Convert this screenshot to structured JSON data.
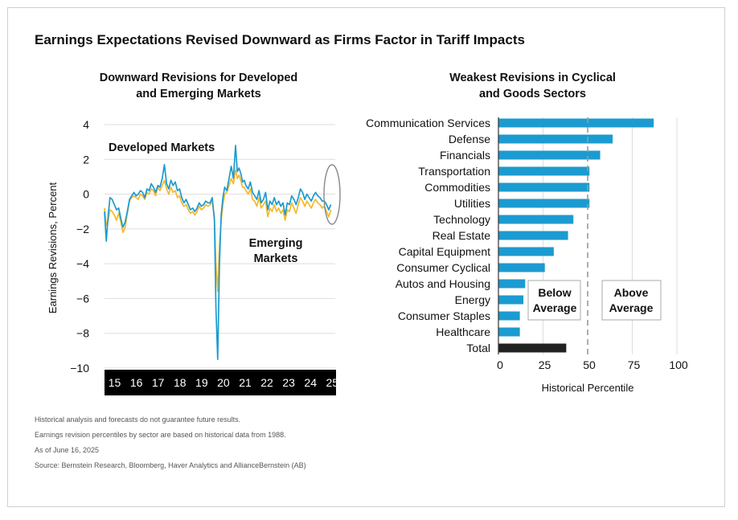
{
  "main_title": "Earnings Expectations Revised Downward as Firms Factor in Tariff Impacts",
  "left_title_line1": "Downward Revisions for Developed",
  "left_title_line2": "and Emerging Markets",
  "right_title_line1": "Weakest Revisions in Cyclical",
  "right_title_line2": "and Goods Sectors",
  "notes": [
    "Historical analysis and forecasts do not guarantee future results.",
    "Earnings revision percentiles by sector are based on historical data from 1988.",
    "As of June 16, 2025",
    "Source: Bernstein Research, Bloomberg, Haver Analytics and AllianceBernstein (AB)"
  ],
  "colors": {
    "developed": "#1b9bd0",
    "emerging": "#f5b82e",
    "bar": "#1b9bd0",
    "total": "#222222",
    "grid": "#dddddd"
  },
  "chart_data": [
    {
      "type": "line",
      "ylabel": "Earnings Revisions, Percent",
      "ylim": [
        -10,
        4
      ],
      "yticks": [
        "4",
        "2",
        "0",
        "−2",
        "−4",
        "−6",
        "−8",
        "−10"
      ],
      "xlim": [
        2015,
        2025.6
      ],
      "xticks": [
        "15",
        "16",
        "17",
        "18",
        "19",
        "20",
        "21",
        "22",
        "23",
        "24",
        "25"
      ],
      "annotations": {
        "developed": "Developed Markets",
        "emerging_line1": "Emerging",
        "emerging_line2": "Markets"
      },
      "series": [
        {
          "name": "Developed Markets",
          "x": [
            2015.0,
            2015.08,
            2015.17,
            2015.25,
            2015.35,
            2015.45,
            2015.55,
            2015.65,
            2015.75,
            2015.85,
            2015.95,
            2016.05,
            2016.15,
            2016.25,
            2016.35,
            2016.45,
            2016.55,
            2016.65,
            2016.75,
            2016.85,
            2016.95,
            2017.05,
            2017.15,
            2017.25,
            2017.35,
            2017.45,
            2017.55,
            2017.65,
            2017.75,
            2017.85,
            2017.95,
            2018.05,
            2018.15,
            2018.25,
            2018.35,
            2018.45,
            2018.55,
            2018.65,
            2018.75,
            2018.85,
            2018.95,
            2019.05,
            2019.15,
            2019.25,
            2019.35,
            2019.45,
            2019.55,
            2019.65,
            2019.75,
            2019.85,
            2019.95,
            2020.05,
            2020.12,
            2020.2,
            2020.28,
            2020.36,
            2020.44,
            2020.52,
            2020.62,
            2020.72,
            2020.82,
            2020.92,
            2021.02,
            2021.1,
            2021.18,
            2021.26,
            2021.34,
            2021.42,
            2021.5,
            2021.6,
            2021.7,
            2021.8,
            2021.9,
            2022.0,
            2022.1,
            2022.2,
            2022.3,
            2022.4,
            2022.5,
            2022.6,
            2022.7,
            2022.8,
            2022.9,
            2023.0,
            2023.1,
            2023.2,
            2023.3,
            2023.4,
            2023.5,
            2023.6,
            2023.7,
            2023.8,
            2023.9,
            2024.0,
            2024.1,
            2024.2,
            2024.3,
            2024.4,
            2024.5,
            2024.6,
            2024.7,
            2024.8,
            2024.9,
            2025.0,
            2025.1,
            2025.2,
            2025.3,
            2025.4
          ],
          "y": [
            -1.0,
            -2.7,
            -1.2,
            -0.2,
            -0.3,
            -0.6,
            -0.9,
            -0.8,
            -1.4,
            -1.9,
            -1.6,
            -1.0,
            -0.3,
            -0.1,
            0.1,
            -0.1,
            0.0,
            0.2,
            0.1,
            -0.2,
            0.3,
            0.2,
            0.6,
            0.4,
            0.1,
            0.5,
            0.4,
            0.9,
            1.7,
            0.6,
            0.3,
            0.8,
            0.5,
            0.7,
            0.2,
            0.3,
            -0.2,
            -0.5,
            -0.3,
            -0.6,
            -0.9,
            -0.8,
            -1.0,
            -0.8,
            -0.5,
            -0.7,
            -0.6,
            -0.4,
            -0.5,
            -0.5,
            -0.2,
            -1.5,
            -6.5,
            -9.5,
            -4.0,
            -1.2,
            -0.2,
            0.4,
            0.2,
            0.9,
            1.6,
            0.9,
            2.8,
            1.3,
            1.5,
            1.2,
            0.7,
            0.8,
            0.5,
            0.3,
            0.7,
            0.1,
            -0.1,
            -0.3,
            0.2,
            -0.5,
            -0.3,
            0.1,
            -0.9,
            -0.4,
            -0.6,
            -0.2,
            -0.6,
            -0.4,
            -0.7,
            -0.5,
            -1.2,
            -0.5,
            -0.6,
            -0.1,
            -0.3,
            -0.6,
            -0.2,
            0.3,
            0.1,
            -0.3,
            0.0,
            -0.2,
            -0.4,
            -0.1,
            0.1,
            -0.1,
            -0.2,
            -0.4,
            -0.4,
            -0.6,
            -0.9,
            -0.6
          ]
        },
        {
          "name": "Emerging Markets",
          "x": [
            2015.0,
            2015.08,
            2015.17,
            2015.25,
            2015.35,
            2015.45,
            2015.55,
            2015.65,
            2015.75,
            2015.85,
            2015.95,
            2016.05,
            2016.15,
            2016.25,
            2016.35,
            2016.45,
            2016.55,
            2016.65,
            2016.75,
            2016.85,
            2016.95,
            2017.05,
            2017.15,
            2017.25,
            2017.35,
            2017.45,
            2017.55,
            2017.65,
            2017.75,
            2017.85,
            2017.95,
            2018.05,
            2018.15,
            2018.25,
            2018.35,
            2018.45,
            2018.55,
            2018.65,
            2018.75,
            2018.85,
            2018.95,
            2019.05,
            2019.15,
            2019.25,
            2019.35,
            2019.45,
            2019.55,
            2019.65,
            2019.75,
            2019.85,
            2019.95,
            2020.05,
            2020.12,
            2020.2,
            2020.28,
            2020.36,
            2020.44,
            2020.52,
            2020.62,
            2020.72,
            2020.82,
            2020.92,
            2021.02,
            2021.1,
            2021.18,
            2021.26,
            2021.34,
            2021.42,
            2021.5,
            2021.6,
            2021.7,
            2021.8,
            2021.9,
            2022.0,
            2022.1,
            2022.2,
            2022.3,
            2022.4,
            2022.5,
            2022.6,
            2022.7,
            2022.8,
            2022.9,
            2023.0,
            2023.1,
            2023.2,
            2023.3,
            2023.4,
            2023.5,
            2023.6,
            2023.7,
            2023.8,
            2023.9,
            2024.0,
            2024.1,
            2024.2,
            2024.3,
            2024.4,
            2024.5,
            2024.6,
            2024.7,
            2024.8,
            2024.9,
            2025.0,
            2025.1,
            2025.2,
            2025.3,
            2025.4
          ],
          "y": [
            -0.8,
            -1.8,
            -1.5,
            -0.9,
            -1.0,
            -1.2,
            -1.5,
            -1.1,
            -1.6,
            -2.2,
            -1.9,
            -1.1,
            -0.4,
            -0.2,
            -0.1,
            -0.2,
            -0.3,
            0.0,
            -0.1,
            -0.3,
            0.1,
            0.0,
            0.3,
            0.2,
            -0.1,
            0.4,
            0.2,
            0.5,
            0.8,
            0.3,
            0.0,
            0.4,
            0.1,
            0.2,
            -0.2,
            -0.1,
            -0.5,
            -0.7,
            -0.6,
            -0.9,
            -1.1,
            -1.0,
            -1.2,
            -1.0,
            -0.7,
            -0.9,
            -0.8,
            -0.6,
            -0.7,
            -0.6,
            -0.4,
            -1.3,
            -4.0,
            -5.6,
            -3.0,
            -1.5,
            -0.6,
            0.0,
            0.1,
            0.5,
            0.9,
            0.6,
            1.4,
            0.9,
            1.1,
            0.8,
            0.4,
            0.4,
            0.2,
            0.0,
            0.3,
            -0.3,
            -0.4,
            -0.7,
            -0.2,
            -0.8,
            -0.6,
            -0.4,
            -1.3,
            -0.8,
            -1.0,
            -0.6,
            -1.0,
            -0.8,
            -1.1,
            -0.9,
            -1.5,
            -0.9,
            -1.0,
            -0.5,
            -0.8,
            -1.1,
            -0.6,
            -0.2,
            -0.4,
            -0.7,
            -0.4,
            -0.6,
            -0.8,
            -0.5,
            -0.3,
            -0.5,
            -0.6,
            -0.8,
            -0.7,
            -1.0,
            -1.3,
            -0.9
          ]
        }
      ]
    },
    {
      "type": "bar",
      "orientation": "horizontal",
      "xlabel": "Historical Percentile",
      "xlim": [
        0,
        100
      ],
      "xticks": [
        0,
        25,
        50,
        75,
        100
      ],
      "average_line": 50,
      "boxes": {
        "below_line1": "Below",
        "below_line2": "Average",
        "above_line1": "Above",
        "above_line2": "Average"
      },
      "categories": [
        "Communication Services",
        "Defense",
        "Financials",
        "Transportation",
        "Commodities",
        "Utilities",
        "Technology",
        "Real Estate",
        "Capital Equipment",
        "Consumer Cyclical",
        "Autos and Housing",
        "Energy",
        "Consumer Staples",
        "Healthcare",
        "Total"
      ],
      "values": [
        87,
        64,
        57,
        51,
        51,
        51,
        42,
        39,
        31,
        26,
        15,
        14,
        12,
        12,
        38
      ]
    }
  ]
}
